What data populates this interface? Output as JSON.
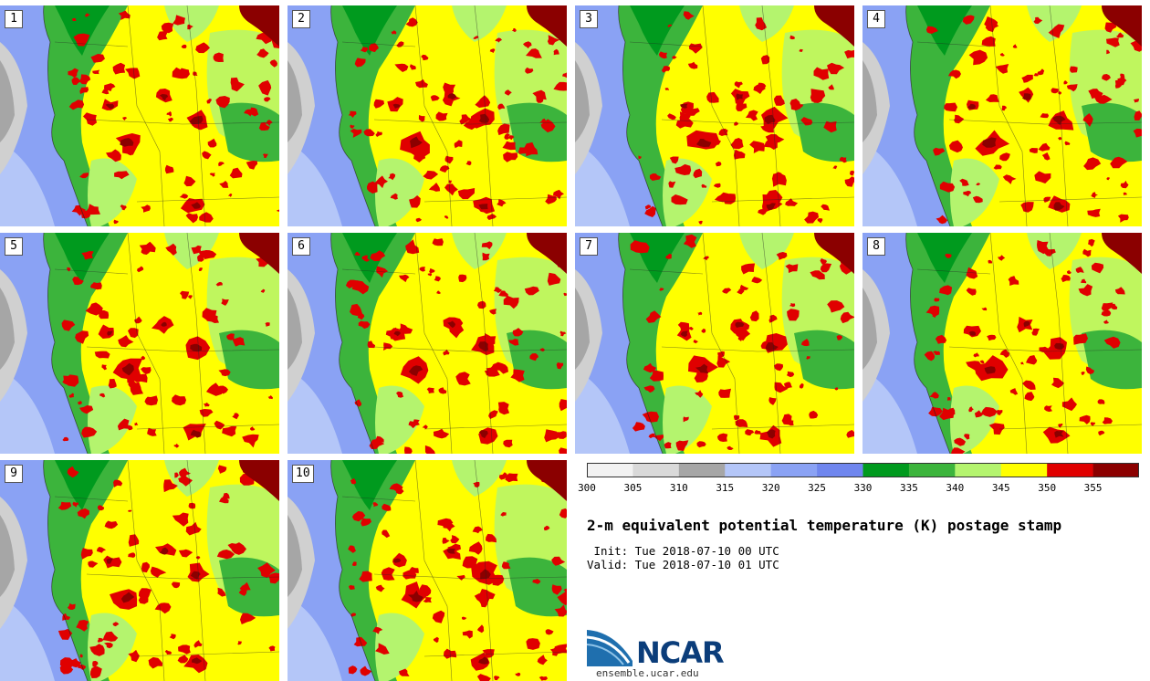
{
  "panels": [
    {
      "label": "1"
    },
    {
      "label": "2"
    },
    {
      "label": "3"
    },
    {
      "label": "4"
    },
    {
      "label": "5"
    },
    {
      "label": "6"
    },
    {
      "label": "7"
    },
    {
      "label": "8"
    },
    {
      "label": "9"
    },
    {
      "label": "10"
    }
  ],
  "colorbar": {
    "ticks": [
      "300",
      "305",
      "310",
      "315",
      "320",
      "325",
      "330",
      "335",
      "340",
      "345",
      "350",
      "355"
    ],
    "bins": [
      {
        "from": 300,
        "to": 305,
        "color": "#f2f2f2"
      },
      {
        "from": 305,
        "to": 310,
        "color": "#d9d9d9"
      },
      {
        "from": 310,
        "to": 315,
        "color": "#a6a6a6"
      },
      {
        "from": 315,
        "to": 320,
        "color": "#b4c6f8"
      },
      {
        "from": 320,
        "to": 325,
        "color": "#8aa2f4"
      },
      {
        "from": 325,
        "to": 330,
        "color": "#6f86ee"
      },
      {
        "from": 330,
        "to": 335,
        "color": "#009a1e"
      },
      {
        "from": 335,
        "to": 340,
        "color": "#3cb43c"
      },
      {
        "from": 340,
        "to": 345,
        "color": "#b4f46e"
      },
      {
        "from": 345,
        "to": 350,
        "color": "#ffff00"
      },
      {
        "from": 350,
        "to": 355,
        "color": "#e00000"
      },
      {
        "from": 355,
        "to": 360,
        "color": "#8b0000"
      }
    ]
  },
  "title": "2-m equivalent potential temperature (K) postage stamp",
  "init": " Init: Tue 2018-07-10 00 UTC",
  "valid": "Valid: Tue 2018-07-10 01 UTC",
  "logo": {
    "word": "NCAR",
    "url": "ensemble.ucar.edu"
  },
  "colors": {
    "ocean": "#8aa2f4",
    "land_base": "#ffff00",
    "hot": "#e00000",
    "very_hot": "#8b0000"
  }
}
